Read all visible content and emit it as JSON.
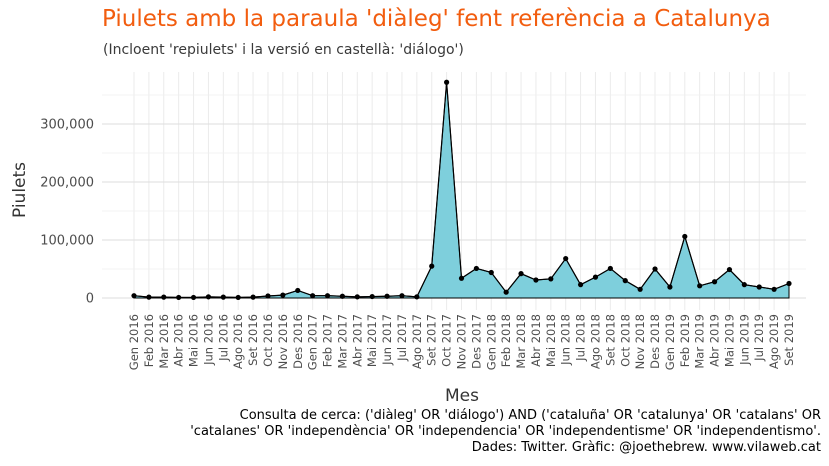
{
  "chart_data": {
    "type": "area",
    "title": "Piulets amb la paraula 'diàleg' fent referència a Catalunya",
    "subtitle": "(Incloent 'repiulets' i la versió en castellà: 'diálogo')",
    "xlabel": "Mes",
    "ylabel": "Piulets",
    "ylim": [
      0,
      380000
    ],
    "yticks": [
      0,
      100000,
      200000,
      300000
    ],
    "ytick_labels": [
      "0",
      "100,000",
      "200,000",
      "300,000"
    ],
    "grid": true,
    "fill_color": "#7ecfdc",
    "line_color": "#000000",
    "categories": [
      "Gen 2016",
      "Feb 2016",
      "Mar 2016",
      "Abr 2016",
      "Mai 2016",
      "Jun 2016",
      "Jul 2016",
      "Ago 2016",
      "Set 2016",
      "Oct 2016",
      "Nov 2016",
      "Des 2016",
      "Gen 2017",
      "Feb 2017",
      "Mar 2017",
      "Abr 2017",
      "Mai 2017",
      "Jun 2017",
      "Jul 2017",
      "Ago 2017",
      "Set 2017",
      "Oct 2017",
      "Nov 2017",
      "Des 2017",
      "Gen 2018",
      "Feb 2018",
      "Mar 2018",
      "Abr 2018",
      "Mai 2018",
      "Jun 2018",
      "Jul 2018",
      "Ago 2018",
      "Set 2018",
      "Oct 2018",
      "Nov 2018",
      "Des 2018",
      "Gen 2019",
      "Feb 2019",
      "Mar 2019",
      "Abr 2019",
      "Mai 2019",
      "Jun 2019",
      "Jul 2019",
      "Ago 2019",
      "Set 2019"
    ],
    "values": [
      4000,
      1500,
      1500,
      1000,
      1000,
      2000,
      1500,
      1000,
      1500,
      3500,
      5000,
      13000,
      4000,
      4000,
      3000,
      2000,
      2500,
      3000,
      4000,
      2000,
      55000,
      372000,
      34000,
      51000,
      44000,
      10000,
      42000,
      31000,
      33000,
      68000,
      23000,
      36000,
      51000,
      30000,
      15000,
      50000,
      19000,
      106000,
      21000,
      28000,
      49000,
      23000,
      19000,
      15000,
      25000
    ]
  },
  "caption": {
    "line1": "Consulta de cerca: ('diàleg' OR 'diálogo') AND ('cataluña' OR 'catalunya' OR 'catalans' OR",
    "line2": "'catalanes' OR 'independència' OR 'independencia' OR 'independentisme' OR 'independentismo'.",
    "line3": "Dades: Twitter. Gràfic: @joethebrew. www.vilaweb.cat"
  }
}
